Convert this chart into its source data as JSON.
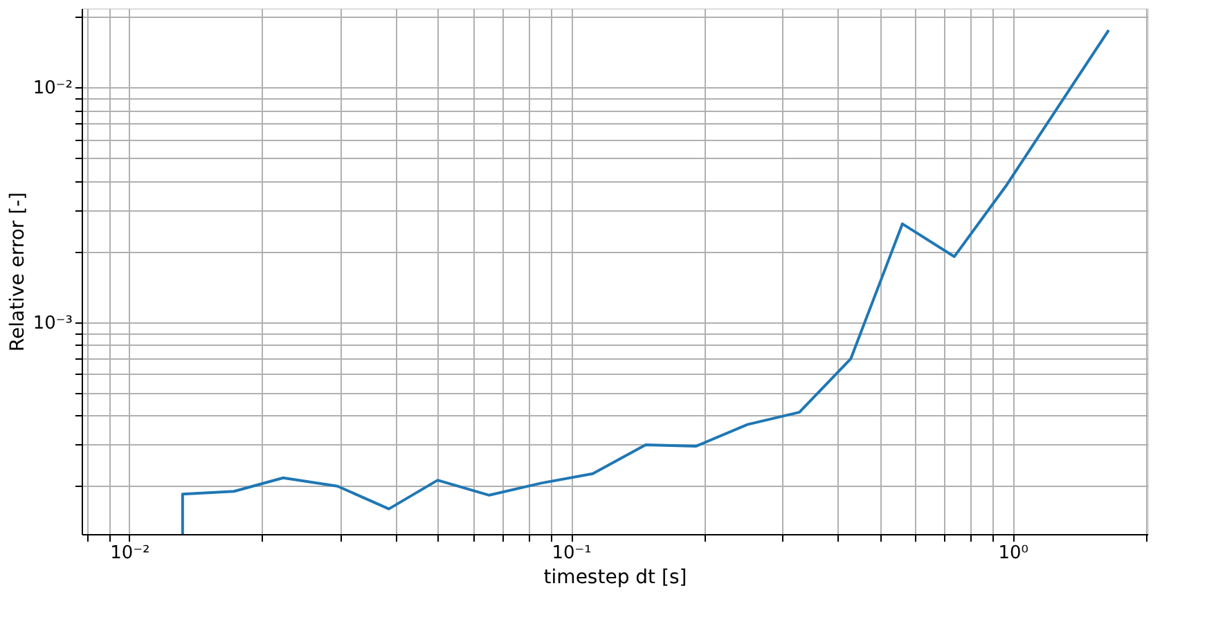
{
  "chart_data": {
    "type": "line",
    "xlabel": "timestep dt [s]",
    "ylabel": "Relative error [-]",
    "log": "xy",
    "grid": true,
    "marker": "none",
    "line_style": "solid",
    "x": [
      0.0132,
      0.0132,
      0.01726,
      0.0223,
      0.0296,
      0.0387,
      0.0499,
      0.0653,
      0.0856,
      0.112,
      0.1476,
      0.192,
      0.251,
      0.329,
      0.43,
      0.563,
      0.738,
      0.966,
      1.65
    ],
    "series": [
      {
        "color": "#1f77b4",
        "values": [
          0.000125,
          0.000185,
          0.00019,
          0.000217,
          0.0002,
          0.00016,
          0.000212,
          0.000183,
          0.000206,
          0.000226,
          0.0003,
          0.000296,
          0.000366,
          0.000413,
          0.000697,
          0.00262,
          0.0019,
          0.0038,
          0.0175
        ]
      }
    ],
    "xlim": [
      0.0078,
      2.02
    ],
    "ylim": [
      0.000125,
      0.0217
    ],
    "xticks": [
      {
        "value": 0.01,
        "label": "10⁻²"
      },
      {
        "value": 0.02,
        "label": null
      },
      {
        "value": 0.03,
        "label": null
      },
      {
        "value": 0.04,
        "label": null
      },
      {
        "value": 0.05,
        "label": null
      },
      {
        "value": 0.06,
        "label": null
      },
      {
        "value": 0.07,
        "label": null
      },
      {
        "value": 0.08,
        "label": null
      },
      {
        "value": 0.09,
        "label": null
      },
      {
        "value": 0.1,
        "label": "10⁻¹"
      },
      {
        "value": 0.2,
        "label": null
      },
      {
        "value": 0.3,
        "label": null
      },
      {
        "value": 0.4,
        "label": null
      },
      {
        "value": 0.5,
        "label": null
      },
      {
        "value": 0.6,
        "label": null
      },
      {
        "value": 0.7,
        "label": null
      },
      {
        "value": 0.8,
        "label": null
      },
      {
        "value": 0.9,
        "label": null
      },
      {
        "value": 1,
        "label": "10⁰"
      },
      {
        "value": 2,
        "label": null
      },
      {
        "value": 0.009,
        "label": null
      },
      {
        "value": 0.008,
        "label": null
      }
    ],
    "yticks": [
      {
        "value": 0.0002,
        "label": null
      },
      {
        "value": 0.0003,
        "label": null
      },
      {
        "value": 0.0004,
        "label": null
      },
      {
        "value": 0.0005,
        "label": null
      },
      {
        "value": 0.0006,
        "label": null
      },
      {
        "value": 0.0007,
        "label": null
      },
      {
        "value": 0.0008,
        "label": null
      },
      {
        "value": 0.0009,
        "label": null
      },
      {
        "value": 0.001,
        "label": "10⁻³"
      },
      {
        "value": 0.002,
        "label": null
      },
      {
        "value": 0.003,
        "label": null
      },
      {
        "value": 0.004,
        "label": null
      },
      {
        "value": 0.005,
        "label": null
      },
      {
        "value": 0.006,
        "label": null
      },
      {
        "value": 0.007,
        "label": null
      },
      {
        "value": 0.008,
        "label": null
      },
      {
        "value": 0.009,
        "label": null
      },
      {
        "value": 0.01,
        "label": "10⁻²"
      },
      {
        "value": 0.02,
        "label": null
      }
    ]
  }
}
